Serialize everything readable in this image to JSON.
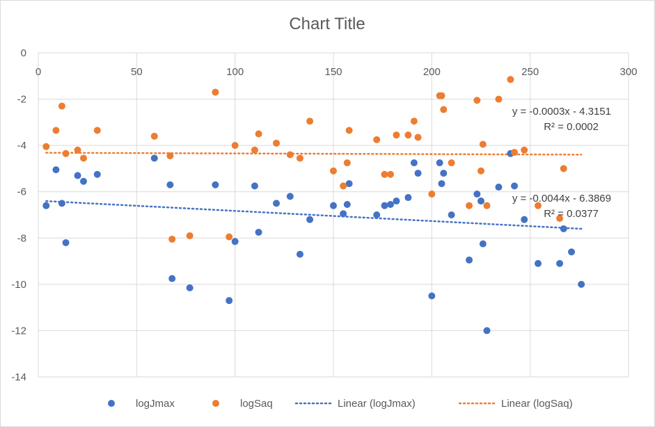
{
  "chart_data": {
    "type": "scatter",
    "title": "Chart Title",
    "xlim": [
      0,
      300
    ],
    "ylim": [
      -14,
      0
    ],
    "x_ticks": [
      "0",
      "50",
      "100",
      "150",
      "200",
      "250",
      "300"
    ],
    "y_ticks": [
      "0",
      "-2",
      "-4",
      "-6",
      "-8",
      "-10",
      "-12",
      "-14"
    ],
    "x_axis_position": "top",
    "grid": true,
    "legend_position": "bottom",
    "series": [
      {
        "name": "logJmax",
        "color": "#4472c4",
        "points": [
          [
            4,
            -6.6
          ],
          [
            9,
            -5.05
          ],
          [
            12,
            -6.5
          ],
          [
            14,
            -8.2
          ],
          [
            20,
            -5.3
          ],
          [
            23,
            -5.55
          ],
          [
            30,
            -5.25
          ],
          [
            59,
            -4.55
          ],
          [
            67,
            -5.7
          ],
          [
            68,
            -9.75
          ],
          [
            77,
            -10.15
          ],
          [
            90,
            -5.7
          ],
          [
            97,
            -10.7
          ],
          [
            100,
            -8.15
          ],
          [
            110,
            -5.75
          ],
          [
            112,
            -7.75
          ],
          [
            121,
            -6.5
          ],
          [
            128,
            -6.2
          ],
          [
            133,
            -8.7
          ],
          [
            138,
            -7.2
          ],
          [
            150,
            -6.6
          ],
          [
            155,
            -6.95
          ],
          [
            157,
            -6.55
          ],
          [
            158,
            -5.65
          ],
          [
            172,
            -7.0
          ],
          [
            176,
            -6.6
          ],
          [
            179,
            -6.55
          ],
          [
            182,
            -6.4
          ],
          [
            188,
            -6.25
          ],
          [
            191,
            -4.75
          ],
          [
            193,
            -5.2
          ],
          [
            200,
            -10.5
          ],
          [
            204,
            -4.75
          ],
          [
            205,
            -5.65
          ],
          [
            206,
            -5.2
          ],
          [
            210,
            -7.0
          ],
          [
            219,
            -8.95
          ],
          [
            223,
            -6.1
          ],
          [
            225,
            -6.4
          ],
          [
            226,
            -8.25
          ],
          [
            228,
            -12.0
          ],
          [
            234,
            -5.8
          ],
          [
            240,
            -4.35
          ],
          [
            242,
            -5.75
          ],
          [
            247,
            -7.2
          ],
          [
            254,
            -9.1
          ],
          [
            265,
            -9.1
          ],
          [
            267,
            -7.6
          ],
          [
            271,
            -8.6
          ],
          [
            276,
            -10.0
          ]
        ]
      },
      {
        "name": "logSaq",
        "color": "#ed7d31",
        "points": [
          [
            4,
            -4.05
          ],
          [
            9,
            -3.35
          ],
          [
            12,
            -2.3
          ],
          [
            14,
            -4.35
          ],
          [
            20,
            -4.2
          ],
          [
            23,
            -4.55
          ],
          [
            30,
            -3.35
          ],
          [
            59,
            -3.6
          ],
          [
            67,
            -4.45
          ],
          [
            68,
            -8.05
          ],
          [
            77,
            -7.9
          ],
          [
            90,
            -1.7
          ],
          [
            97,
            -7.95
          ],
          [
            100,
            -4.0
          ],
          [
            110,
            -4.2
          ],
          [
            112,
            -3.5
          ],
          [
            121,
            -3.9
          ],
          [
            128,
            -4.4
          ],
          [
            133,
            -4.55
          ],
          [
            138,
            -2.95
          ],
          [
            150,
            -5.1
          ],
          [
            155,
            -5.75
          ],
          [
            157,
            -4.75
          ],
          [
            158,
            -3.35
          ],
          [
            172,
            -3.75
          ],
          [
            176,
            -5.25
          ],
          [
            179,
            -5.25
          ],
          [
            182,
            -3.55
          ],
          [
            188,
            -3.55
          ],
          [
            191,
            -2.95
          ],
          [
            193,
            -3.65
          ],
          [
            200,
            -6.1
          ],
          [
            204,
            -1.85
          ],
          [
            205,
            -1.85
          ],
          [
            206,
            -2.45
          ],
          [
            210,
            -4.75
          ],
          [
            219,
            -6.6
          ],
          [
            223,
            -2.05
          ],
          [
            225,
            -5.1
          ],
          [
            226,
            -3.95
          ],
          [
            228,
            -6.6
          ],
          [
            234,
            -2.0
          ],
          [
            240,
            -1.15
          ],
          [
            242,
            -4.3
          ],
          [
            247,
            -4.2
          ],
          [
            254,
            -6.6
          ],
          [
            265,
            -7.15
          ],
          [
            267,
            -5.0
          ]
        ]
      }
    ],
    "trendlines": [
      {
        "name": "Linear (logJmax)",
        "color": "#4472c4",
        "slope": -0.0044,
        "intercept": -6.3869,
        "x_range": [
          4,
          276
        ],
        "equation": "y = -0.0044x - 6.3869",
        "r2": "R² = 0.0377"
      },
      {
        "name": "Linear (logSaq)",
        "color": "#ed7d31",
        "slope": -0.0003,
        "intercept": -4.3151,
        "x_range": [
          4,
          276
        ],
        "equation": "y = -0.0003x - 4.3151",
        "r2": "R² = 0.0002"
      }
    ],
    "legend": [
      {
        "label": "logJmax",
        "kind": "marker",
        "color": "#4472c4"
      },
      {
        "label": "logSaq",
        "kind": "marker",
        "color": "#ed7d31"
      },
      {
        "label": "Linear (logJmax)",
        "kind": "dotted-line",
        "color": "#4472c4"
      },
      {
        "label": "Linear (logSaq)",
        "kind": "dotted-line",
        "color": "#ed7d31"
      }
    ]
  }
}
